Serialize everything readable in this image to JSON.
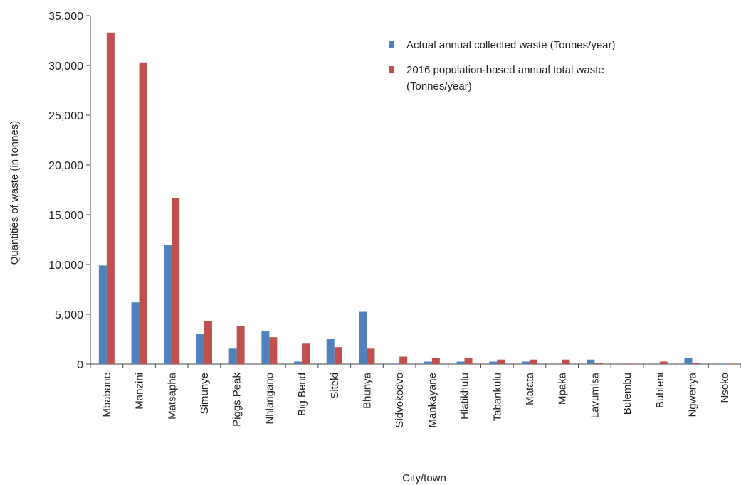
{
  "chart_data": {
    "type": "bar",
    "xlabel": "City/town",
    "ylabel": "Quantities of waste (in tonnes)",
    "ylim": [
      0,
      35000
    ],
    "yticks": [
      0,
      5000,
      10000,
      15000,
      20000,
      25000,
      30000,
      35000
    ],
    "ytick_labels": [
      "0",
      "5,000",
      "10,000",
      "15,000",
      "20,000",
      "25,000",
      "30,000",
      "35,000"
    ],
    "grid": false,
    "legend_position": "top-right",
    "categories": [
      "Mbabane",
      "Manzini",
      "Matsapha",
      "Simunye",
      "Piggs Peak",
      "Nhlangano",
      "Big Bend",
      "Siteki",
      "Bhunya",
      "Sidvokodvo",
      "Mankayane",
      "Hlatikhulu",
      "Tabankulu",
      "Matata",
      "Mpaka",
      "Lavumisa",
      "Bulembu",
      "Buhleni",
      "Ngwenya",
      "Nsoko"
    ],
    "series": [
      {
        "name": "Actual annual collected waste (Tonnes/year)",
        "color": "#4f81bd",
        "values": [
          9900,
          6200,
          12000,
          3000,
          1550,
          3300,
          250,
          2500,
          5250,
          50,
          250,
          250,
          250,
          250,
          50,
          450,
          0,
          50,
          600,
          50
        ]
      },
      {
        "name": "2016 population-based annual total waste (Tonnes/year)",
        "color": "#c0504d",
        "values": [
          33300,
          30300,
          16700,
          4300,
          3800,
          2700,
          2050,
          1700,
          1550,
          750,
          600,
          600,
          450,
          450,
          450,
          100,
          50,
          250,
          100,
          50
        ]
      }
    ],
    "legend": [
      {
        "lines": [
          "Actual annual collected waste (Tonnes/year)"
        ],
        "color": "#4f81bd"
      },
      {
        "lines": [
          "2016 population-based annual total waste",
          "(Tonnes/year)"
        ],
        "color": "#c0504d"
      }
    ]
  }
}
